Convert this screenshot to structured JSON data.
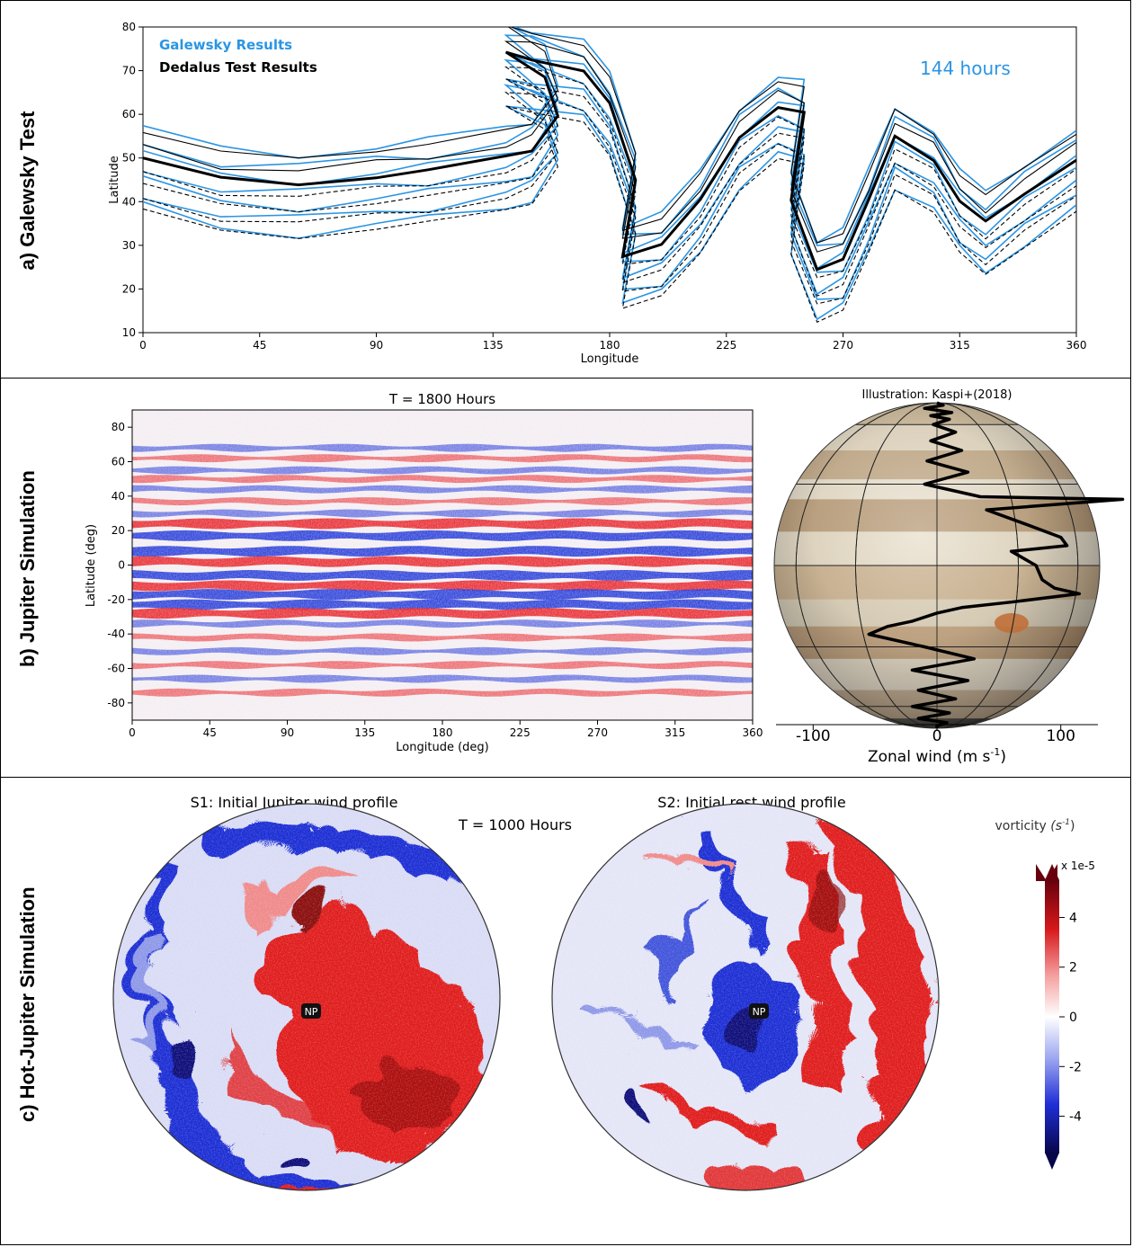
{
  "panels": {
    "a": {
      "label": "a) Galewsky Test"
    },
    "b": {
      "label": "b) Jupiter Simulation"
    },
    "c": {
      "label": "c) Hot-Jupiter Simulation"
    }
  },
  "colors": {
    "galewsky": "#2b95e3",
    "dedalus": "#000000",
    "red": "#e8242a",
    "blue": "#2438d8"
  },
  "chart_data": [
    {
      "type": "line",
      "panel": "a",
      "title": "",
      "xlabel": "Longitude",
      "ylabel": "Latitude",
      "xlim": [
        0,
        360
      ],
      "ylim": [
        10,
        80
      ],
      "xticks": [
        "0",
        "45",
        "90",
        "135",
        "180",
        "225",
        "270",
        "315",
        "360"
      ],
      "yticks": [
        "10",
        "20",
        "30",
        "40",
        "50",
        "60",
        "70",
        "80"
      ],
      "legend": [
        "Galewsky Results",
        "Dedalus Test Results"
      ],
      "annotation": "144 hours",
      "series": [
        {
          "name": "Dedalus Test Results (main contour)",
          "x": [
            0,
            30,
            60,
            90,
            110,
            140,
            150,
            160,
            155,
            140,
            150,
            170,
            180,
            190,
            185,
            200,
            215,
            230,
            245,
            255,
            250,
            260,
            270,
            280,
            290,
            305,
            315,
            325,
            340,
            360
          ],
          "y": [
            50,
            45,
            44,
            46,
            47,
            50,
            52,
            60,
            68,
            74,
            73,
            70,
            62,
            45,
            28,
            30,
            40,
            55,
            62,
            60,
            40,
            25,
            27,
            40,
            55,
            50,
            40,
            35,
            42,
            50
          ]
        }
      ]
    },
    {
      "type": "heatmap",
      "panel": "b",
      "title": "T = 1800 Hours",
      "xlabel": "Longitude (deg)",
      "ylabel": "Latitude (deg)",
      "xlim": [
        0,
        360
      ],
      "ylim": [
        -90,
        90
      ],
      "xticks": [
        "0",
        "45",
        "90",
        "135",
        "180",
        "225",
        "270",
        "315",
        "360"
      ],
      "yticks": [
        "80",
        "60",
        "40",
        "20",
        "0",
        "-20",
        "-40",
        "-60",
        "-80"
      ],
      "bands": [
        {
          "lat": 68,
          "sign": -1
        },
        {
          "lat": 62,
          "sign": 1
        },
        {
          "lat": 55,
          "sign": -1
        },
        {
          "lat": 50,
          "sign": 1
        },
        {
          "lat": 44,
          "sign": -1
        },
        {
          "lat": 37,
          "sign": 1
        },
        {
          "lat": 30,
          "sign": -1
        },
        {
          "lat": 24,
          "sign": 1
        },
        {
          "lat": 17,
          "sign": -1
        },
        {
          "lat": 8,
          "sign": -1
        },
        {
          "lat": 2,
          "sign": 1
        },
        {
          "lat": -6,
          "sign": -1
        },
        {
          "lat": -12,
          "sign": 1
        },
        {
          "lat": -17,
          "sign": -1
        },
        {
          "lat": -23,
          "sign": -1
        },
        {
          "lat": -28,
          "sign": 1
        },
        {
          "lat": -34,
          "sign": -1
        },
        {
          "lat": -42,
          "sign": 1
        },
        {
          "lat": -50,
          "sign": -1
        },
        {
          "lat": -58,
          "sign": 1
        },
        {
          "lat": -66,
          "sign": -1
        },
        {
          "lat": -74,
          "sign": 1
        }
      ]
    },
    {
      "type": "line",
      "panel": "b-right",
      "title": "Illustration: Kaspi+(2018)",
      "xlabel": "Zonal wind (m s",
      "xlabel_sup": "-1",
      "xlabel_end": ")",
      "xticks": [
        "-100",
        "0",
        "100"
      ],
      "xlim": [
        -130,
        130
      ],
      "ylim": [
        -90,
        90
      ],
      "wind_lat": [
        90,
        80,
        75,
        70,
        67,
        64,
        60,
        55,
        50,
        45,
        40,
        35,
        30,
        25,
        24,
        20,
        15,
        10,
        7,
        5,
        0,
        -5,
        -8,
        -10,
        -13,
        -15,
        -17,
        -20,
        -22,
        -25,
        -30,
        -35,
        -40,
        -45,
        -50,
        -55,
        -60,
        -65,
        -70,
        -75,
        -80,
        -90
      ],
      "wind_u": [
        0,
        5,
        -10,
        12,
        -5,
        10,
        -3,
        15,
        -5,
        20,
        -8,
        25,
        -10,
        35,
        150,
        40,
        70,
        100,
        105,
        60,
        80,
        85,
        95,
        115,
        60,
        20,
        0,
        -20,
        -40,
        -55,
        -10,
        30,
        -20,
        25,
        -15,
        15,
        -20,
        10,
        -15,
        8,
        0,
        0
      ]
    },
    {
      "type": "heatmap",
      "panel": "c",
      "title": "T = 1000 Hours",
      "plots": [
        {
          "title": "S1: Initial Jupiter wind profile",
          "pole_label": "NP"
        },
        {
          "title": "S2: Initial rest wind profile",
          "pole_label": "NP"
        }
      ],
      "colorbar": {
        "label": "vorticity",
        "unit_left": "(s",
        "unit_sup": "-1",
        "unit_right": ")",
        "scale": "x 1e-5",
        "ticks": [
          "4",
          "2",
          "0",
          "-2",
          "-4"
        ],
        "range": [
          -5.5,
          5.5
        ]
      }
    }
  ]
}
